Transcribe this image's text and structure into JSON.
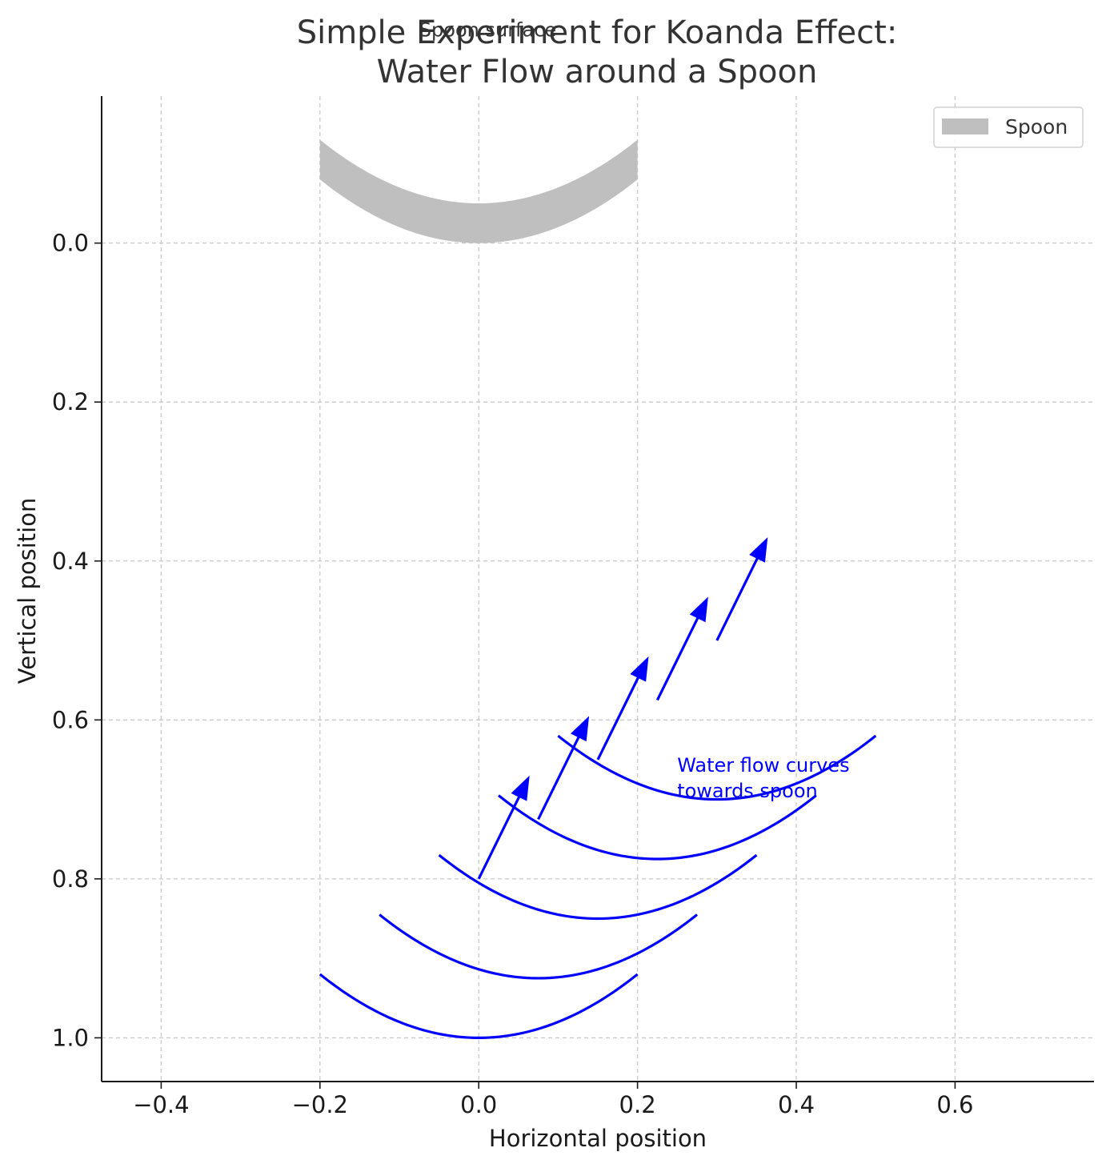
{
  "chart_data": {
    "type": "line",
    "title": "Simple Experiment for Koanda Effect:\nWater Flow around a Spoon",
    "xlabel": "Horizontal position",
    "ylabel": "Vertical position",
    "xlim": [
      -0.475,
      0.775
    ],
    "ylim": [
      1.055,
      -0.185
    ],
    "y_inverted": true,
    "grid": true,
    "x_ticks": [
      -0.4,
      -0.2,
      0.0,
      0.2,
      0.4,
      0.6
    ],
    "x_tick_labels": [
      "−0.4",
      "−0.2",
      "0.0",
      "0.2",
      "0.4",
      "0.6"
    ],
    "y_ticks": [
      0.0,
      0.2,
      0.4,
      0.6,
      0.8,
      1.0
    ],
    "y_tick_labels": [
      "0.0",
      "0.2",
      "0.4",
      "0.6",
      "0.8",
      "1.0"
    ],
    "spoon": {
      "name": "Spoon",
      "color": "#bfbfbf",
      "x_range": [
        -0.2,
        0.2
      ],
      "lower_curve": {
        "vertex_x": 0.0,
        "vertex_y": 0.0,
        "edge_y": -0.08
      },
      "upper_curve": {
        "vertex_x": 0.0,
        "vertex_y": -0.05,
        "edge_y": -0.13
      }
    },
    "flow_color": "#0000ff",
    "flow_lines": [
      {
        "x_start": -0.2,
        "x_end": 0.2,
        "vertex_x": 0.0,
        "vertex_y": 1.0,
        "edge_y": 0.92
      },
      {
        "x_start": -0.125,
        "x_end": 0.275,
        "vertex_x": 0.075,
        "vertex_y": 0.925,
        "edge_y": 0.845
      },
      {
        "x_start": -0.05,
        "x_end": 0.35,
        "vertex_x": 0.15,
        "vertex_y": 0.85,
        "edge_y": 0.77
      },
      {
        "x_start": 0.025,
        "x_end": 0.425,
        "vertex_x": 0.225,
        "vertex_y": 0.775,
        "edge_y": 0.695
      },
      {
        "x_start": 0.1,
        "x_end": 0.5,
        "vertex_x": 0.3,
        "vertex_y": 0.7,
        "edge_y": 0.62
      }
    ],
    "arrows": [
      {
        "x": 0.0,
        "y": 0.8,
        "dx": 0.064,
        "dy": -0.13
      },
      {
        "x": 0.075,
        "y": 0.725,
        "dx": 0.064,
        "dy": -0.13
      },
      {
        "x": 0.15,
        "y": 0.65,
        "dx": 0.064,
        "dy": -0.13
      },
      {
        "x": 0.225,
        "y": 0.575,
        "dx": 0.064,
        "dy": -0.13
      },
      {
        "x": 0.3,
        "y": 0.5,
        "dx": 0.064,
        "dy": -0.13
      }
    ],
    "annotations": [
      {
        "text": "Water flow curves\ntowards spoon",
        "x": 0.25,
        "y": 0.665,
        "color": "#0000ff"
      },
      {
        "text": "Spoon surface",
        "x": -0.075,
        "y": -0.26,
        "color": "#333333"
      }
    ],
    "legend": {
      "position": "top-right",
      "entries": [
        "Spoon"
      ]
    }
  }
}
